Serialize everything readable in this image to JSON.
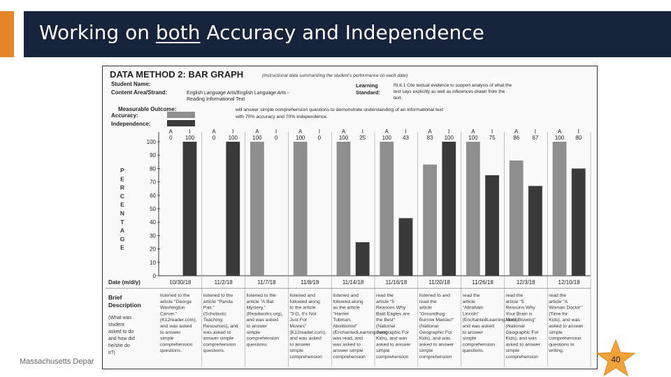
{
  "slide": {
    "title_before": "Working on ",
    "title_emphasis": "both",
    "title_after": " Accuracy and Independence",
    "footer": "Massachusetts Depar",
    "page_number": "40",
    "accent_color": "#e8852a",
    "header_color": "#16233a",
    "star_color": "#f2a23a"
  },
  "chart_data": {
    "type": "bar",
    "title": "DATA METHOD 2: BAR GRAPH",
    "subtitle": "(instructional data summarizing the student's performance on each date)",
    "student_label": "Student Name:",
    "content_area_label": "Content Area/Strand:",
    "content_area": "English Language Arts/English Language Arts - Reading Informational Text",
    "learning_standard_label": "Learning Standard:",
    "learning_standard": "RI.6.1 Cite textual evidence to support analysis of what the text says explicitly as well as inferences drawn from the text.",
    "outcome_label": "Measurable Outcome:",
    "outcome": "will answer simple comprehension questions to demonstrate understanding of an informational text with 70% accuracy and 70% independence.",
    "legend": [
      {
        "name": "Accuracy:",
        "color": "#8e8e8e"
      },
      {
        "name": "Independence:",
        "color": "#3a3a3a"
      }
    ],
    "ylabel": "PERCENTAGE",
    "ylim": [
      0,
      100
    ],
    "yticks": [
      0,
      10,
      20,
      30,
      40,
      50,
      60,
      70,
      80,
      90,
      100
    ],
    "xlabel": "Date (m/d/y)",
    "categories": [
      "10/30/18",
      "11/2/18",
      "11/7/18",
      "11/8/18",
      "11/14/18",
      "11/16/18",
      "11/20/18",
      "11/26/18",
      "12/3/18",
      "12/10/18"
    ],
    "series": [
      {
        "name": "A",
        "values": [
          0,
          0,
          100,
          100,
          100,
          100,
          83,
          100,
          86,
          100
        ]
      },
      {
        "name": "I",
        "values": [
          100,
          100,
          0,
          0,
          25,
          43,
          100,
          75,
          67,
          80
        ]
      }
    ],
    "description_label": "Brief Description",
    "description_sublabel": "(What was student asked to do and how did he/she do it?)",
    "descriptions": [
      "listened to the article \"George Washington Carver,\" (K12reader.com), and was asked to answer simple comprehension questions.",
      "listened to the article \"Panda Pair,\" (Scholastic Teaching Resources), and was asked to answer simple comprehension questions.",
      "listened to the article \"A Bat Mystery,\" (Readworks.org), and was asked to answer simple comprehension questions.",
      "listened and followed along to the article \"3-D, It's Not Just For Movies\" (K12reader.com), and was asked to answer simple comprehension questions.",
      "listened and followed along as the article \"Harriet Tubman, Abolitionist\" (EnchantedLearning.com) was read, and was asked to answer simple comprehension questions.",
      "read the article \"5 Reasons Why Bald Eagles are the Best\" (National Geographic For Kids), and was asked to answer simple comprehension questions in writing.",
      "listened to and read the article \"Groundhog: Burrow Maniac!\" (National Geographic For Kids), and was asked to answer simple comprehension questions in writing.",
      "read the article \"Abraham Lincoln\" (EnchantedLearning.com), and was asked to answer simple comprehension questions.",
      "read the article \"5 Reasons Why Your Brain is Mind-Blowing\" (National Geographic For Kids), and was asked to answer simple comprehension questions in writing.",
      "read the article \"A Woman Doctor\" (Time for Kids), and was asked to answer simple comprehension questions in writing."
    ]
  }
}
